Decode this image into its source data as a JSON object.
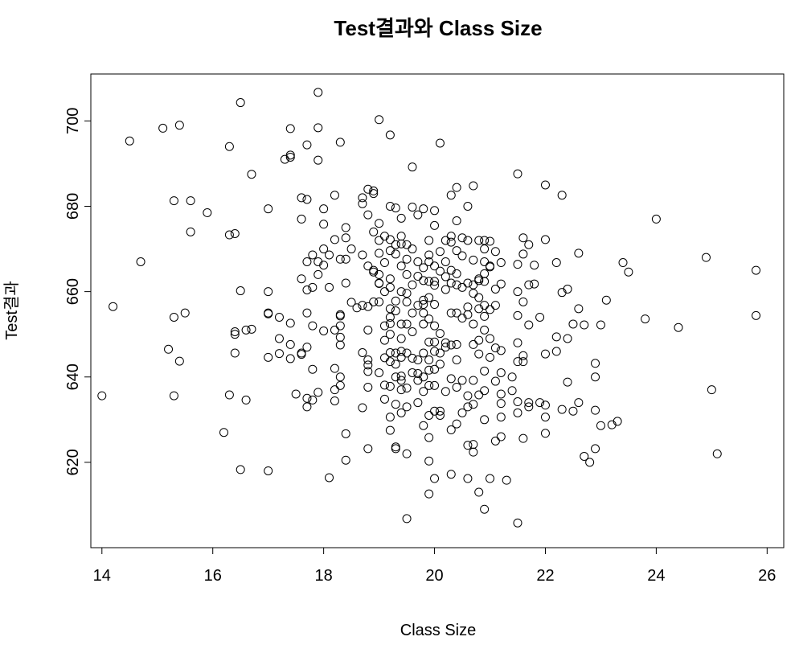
{
  "chart_data": {
    "type": "scatter",
    "title": "Test결과와 Class Size",
    "xlabel": "Class Size",
    "ylabel": "Test결과",
    "xlim": [
      13.8,
      26.3
    ],
    "ylim": [
      600,
      711
    ],
    "xticks": [
      14,
      16,
      18,
      20,
      22,
      24,
      26
    ],
    "yticks": [
      620,
      640,
      660,
      680,
      700
    ],
    "grid": false,
    "marker": "open-circle",
    "points": [
      [
        14.0,
        635.6
      ],
      [
        14.2,
        656.5
      ],
      [
        14.5,
        695.3
      ],
      [
        14.7,
        667.0
      ],
      [
        15.1,
        698.3
      ],
      [
        15.3,
        681.3
      ],
      [
        15.3,
        654.0
      ],
      [
        15.3,
        635.6
      ],
      [
        15.2,
        646.5
      ],
      [
        15.4,
        699.0
      ],
      [
        15.4,
        643.7
      ],
      [
        15.5,
        655.0
      ],
      [
        15.6,
        681.3
      ],
      [
        15.6,
        674.0
      ],
      [
        15.9,
        678.5
      ],
      [
        16.2,
        627.0
      ],
      [
        16.3,
        694.0
      ],
      [
        16.3,
        673.3
      ],
      [
        16.3,
        635.8
      ],
      [
        16.4,
        673.6
      ],
      [
        16.4,
        650.6
      ],
      [
        16.4,
        650.0
      ],
      [
        16.4,
        645.6
      ],
      [
        16.5,
        704.3
      ],
      [
        16.5,
        660.2
      ],
      [
        16.5,
        618.3
      ],
      [
        16.6,
        651.0
      ],
      [
        16.6,
        634.6
      ],
      [
        16.7,
        687.5
      ],
      [
        16.7,
        651.2
      ],
      [
        17.0,
        679.4
      ],
      [
        17.0,
        660.0
      ],
      [
        17.0,
        655.0
      ],
      [
        17.0,
        654.8
      ],
      [
        17.0,
        644.6
      ],
      [
        17.0,
        618.0
      ],
      [
        17.2,
        654.0
      ],
      [
        17.2,
        649.0
      ],
      [
        17.2,
        645.5
      ],
      [
        17.3,
        691.0
      ],
      [
        17.4,
        691.5
      ],
      [
        17.4,
        692.0
      ],
      [
        17.4,
        698.2
      ],
      [
        17.4,
        652.6
      ],
      [
        17.4,
        647.6
      ],
      [
        17.4,
        644.3
      ],
      [
        17.5,
        636.0
      ],
      [
        17.6,
        645.3
      ],
      [
        17.6,
        682.0
      ],
      [
        17.6,
        677.0
      ],
      [
        17.6,
        645.6
      ],
      [
        17.6,
        663.0
      ],
      [
        17.7,
        694.4
      ],
      [
        17.7,
        681.6
      ],
      [
        17.7,
        667.0
      ],
      [
        17.7,
        660.4
      ],
      [
        17.7,
        655.0
      ],
      [
        17.7,
        647.0
      ],
      [
        17.7,
        633.0
      ],
      [
        17.7,
        635.0
      ],
      [
        17.8,
        668.6
      ],
      [
        17.8,
        661.0
      ],
      [
        17.8,
        652.0
      ],
      [
        17.8,
        634.6
      ],
      [
        17.8,
        641.8
      ],
      [
        17.9,
        706.7
      ],
      [
        17.9,
        698.4
      ],
      [
        17.9,
        690.8
      ],
      [
        17.9,
        667.0
      ],
      [
        17.9,
        664.0
      ],
      [
        17.9,
        636.4
      ],
      [
        18.0,
        679.4
      ],
      [
        18.0,
        675.8
      ],
      [
        18.0,
        670.0
      ],
      [
        18.0,
        666.2
      ],
      [
        18.0,
        650.8
      ],
      [
        18.1,
        616.4
      ],
      [
        18.1,
        668.6
      ],
      [
        18.1,
        661.0
      ],
      [
        18.2,
        682.6
      ],
      [
        18.2,
        672.2
      ],
      [
        18.2,
        651.0
      ],
      [
        18.2,
        637.0
      ],
      [
        18.2,
        642.0
      ],
      [
        18.2,
        634.4
      ],
      [
        18.3,
        695.0
      ],
      [
        18.3,
        667.6
      ],
      [
        18.3,
        654.6
      ],
      [
        18.3,
        654.3
      ],
      [
        18.3,
        652.0
      ],
      [
        18.3,
        649.3
      ],
      [
        18.3,
        647.5
      ],
      [
        18.3,
        640.0
      ],
      [
        18.3,
        638.0
      ],
      [
        18.4,
        675.0
      ],
      [
        18.4,
        672.6
      ],
      [
        18.4,
        667.6
      ],
      [
        18.4,
        662.0
      ],
      [
        18.4,
        626.7
      ],
      [
        18.4,
        620.5
      ],
      [
        18.5,
        670.0
      ],
      [
        18.5,
        657.5
      ],
      [
        18.6,
        656.2
      ],
      [
        18.7,
        682.0
      ],
      [
        18.7,
        680.6
      ],
      [
        18.7,
        668.6
      ],
      [
        18.7,
        656.8
      ],
      [
        18.7,
        645.7
      ],
      [
        18.7,
        632.8
      ],
      [
        18.8,
        684.0
      ],
      [
        18.8,
        678.0
      ],
      [
        18.8,
        666.0
      ],
      [
        18.8,
        656.5
      ],
      [
        18.8,
        651.0
      ],
      [
        18.8,
        644.0
      ],
      [
        18.8,
        642.8
      ],
      [
        18.8,
        641.3
      ],
      [
        18.8,
        637.6
      ],
      [
        18.8,
        623.2
      ],
      [
        18.9,
        683.6
      ],
      [
        18.9,
        683.0
      ],
      [
        18.9,
        674.0
      ],
      [
        18.9,
        664.6
      ],
      [
        18.9,
        657.6
      ],
      [
        18.9,
        665.0
      ],
      [
        19.0,
        700.3
      ],
      [
        19.0,
        672.0
      ],
      [
        19.0,
        669.0
      ],
      [
        19.0,
        664.0
      ],
      [
        19.0,
        661.9
      ],
      [
        19.0,
        657.6
      ],
      [
        19.0,
        662.0
      ],
      [
        19.0,
        641.0
      ],
      [
        19.0,
        676.0
      ],
      [
        19.1,
        673.0
      ],
      [
        19.1,
        666.8
      ],
      [
        19.1,
        660.0
      ],
      [
        19.1,
        652.0
      ],
      [
        19.1,
        648.6
      ],
      [
        19.1,
        644.5
      ],
      [
        19.1,
        638.1
      ],
      [
        19.1,
        634.8
      ],
      [
        19.2,
        696.7
      ],
      [
        19.2,
        680.0
      ],
      [
        19.2,
        672.2
      ],
      [
        19.2,
        669.6
      ],
      [
        19.2,
        663.0
      ],
      [
        19.2,
        661.0
      ],
      [
        19.2,
        656.0
      ],
      [
        19.2,
        654.0
      ],
      [
        19.2,
        652.5
      ],
      [
        19.2,
        650.0
      ],
      [
        19.2,
        645.7
      ],
      [
        19.2,
        643.6
      ],
      [
        19.2,
        637.8
      ],
      [
        19.2,
        630.6
      ],
      [
        19.2,
        627.5
      ],
      [
        19.3,
        679.6
      ],
      [
        19.3,
        671.0
      ],
      [
        19.3,
        668.8
      ],
      [
        19.3,
        657.8
      ],
      [
        19.3,
        655.5
      ],
      [
        19.3,
        645.6
      ],
      [
        19.3,
        643.0
      ],
      [
        19.3,
        640.0
      ],
      [
        19.3,
        633.6
      ],
      [
        19.3,
        623.6
      ],
      [
        19.3,
        623.2
      ],
      [
        19.4,
        677.2
      ],
      [
        19.4,
        673.0
      ],
      [
        19.4,
        671.2
      ],
      [
        19.4,
        666.0
      ],
      [
        19.4,
        660.0
      ],
      [
        19.4,
        652.4
      ],
      [
        19.4,
        649.0
      ],
      [
        19.4,
        646.0
      ],
      [
        19.4,
        644.6
      ],
      [
        19.4,
        640.2
      ],
      [
        19.4,
        639.2
      ],
      [
        19.4,
        637.0
      ],
      [
        19.4,
        631.6
      ],
      [
        19.5,
        671.0
      ],
      [
        19.5,
        667.6
      ],
      [
        19.5,
        664.0
      ],
      [
        19.5,
        659.6
      ],
      [
        19.5,
        657.6
      ],
      [
        19.5,
        652.4
      ],
      [
        19.5,
        645.6
      ],
      [
        19.5,
        637.4
      ],
      [
        19.5,
        633.0
      ],
      [
        19.5,
        622.0
      ],
      [
        19.5,
        606.8
      ],
      [
        19.6,
        689.2
      ],
      [
        19.6,
        679.8
      ],
      [
        19.6,
        670.0
      ],
      [
        19.6,
        661.6
      ],
      [
        19.6,
        655.0
      ],
      [
        19.6,
        650.6
      ],
      [
        19.6,
        644.4
      ],
      [
        19.6,
        641.0
      ],
      [
        19.7,
        678.0
      ],
      [
        19.7,
        667.0
      ],
      [
        19.7,
        663.6
      ],
      [
        19.7,
        656.8
      ],
      [
        19.7,
        644.0
      ],
      [
        19.7,
        640.8
      ],
      [
        19.7,
        639.2
      ],
      [
        19.7,
        634.0
      ],
      [
        19.8,
        679.4
      ],
      [
        19.8,
        665.6
      ],
      [
        19.8,
        662.6
      ],
      [
        19.8,
        658.0
      ],
      [
        19.8,
        657.0
      ],
      [
        19.8,
        655.0
      ],
      [
        19.8,
        652.4
      ],
      [
        19.8,
        645.6
      ],
      [
        19.8,
        640.0
      ],
      [
        19.8,
        636.6
      ],
      [
        19.8,
        628.6
      ],
      [
        19.9,
        672.0
      ],
      [
        19.9,
        668.6
      ],
      [
        19.9,
        667.0
      ],
      [
        19.9,
        662.4
      ],
      [
        19.9,
        658.6
      ],
      [
        19.9,
        653.6
      ],
      [
        19.9,
        648.2
      ],
      [
        19.9,
        644.0
      ],
      [
        19.9,
        641.6
      ],
      [
        19.9,
        638.0
      ],
      [
        19.9,
        631.0
      ],
      [
        19.9,
        625.8
      ],
      [
        19.9,
        620.3
      ],
      [
        19.9,
        612.6
      ],
      [
        20.0,
        679.0
      ],
      [
        20.0,
        675.5
      ],
      [
        20.0,
        666.0
      ],
      [
        20.0,
        662.4
      ],
      [
        20.0,
        661.5
      ],
      [
        20.0,
        657.0
      ],
      [
        20.0,
        652.0
      ],
      [
        20.0,
        648.2
      ],
      [
        20.0,
        646.0
      ],
      [
        20.0,
        641.8
      ],
      [
        20.0,
        638.0
      ],
      [
        20.0,
        632.0
      ],
      [
        20.0,
        616.2
      ],
      [
        20.1,
        694.8
      ],
      [
        20.1,
        669.4
      ],
      [
        20.1,
        664.8
      ],
      [
        20.1,
        650.2
      ],
      [
        20.1,
        645.6
      ],
      [
        20.1,
        643.0
      ],
      [
        20.1,
        632.0
      ],
      [
        20.1,
        631.0
      ],
      [
        20.2,
        672.0
      ],
      [
        20.2,
        667.0
      ],
      [
        20.2,
        663.5
      ],
      [
        20.2,
        660.5
      ],
      [
        20.2,
        648.0
      ],
      [
        20.2,
        647.0
      ],
      [
        20.2,
        636.6
      ],
      [
        20.3,
        682.6
      ],
      [
        20.3,
        673.0
      ],
      [
        20.3,
        671.6
      ],
      [
        20.3,
        665.0
      ],
      [
        20.3,
        662.0
      ],
      [
        20.3,
        655.0
      ],
      [
        20.3,
        647.5
      ],
      [
        20.3,
        639.6
      ],
      [
        20.3,
        627.6
      ],
      [
        20.3,
        617.2
      ],
      [
        20.4,
        684.4
      ],
      [
        20.4,
        676.6
      ],
      [
        20.4,
        669.6
      ],
      [
        20.4,
        664.2
      ],
      [
        20.4,
        661.6
      ],
      [
        20.4,
        655.0
      ],
      [
        20.4,
        647.6
      ],
      [
        20.4,
        644.0
      ],
      [
        20.4,
        637.6
      ],
      [
        20.4,
        629.0
      ],
      [
        20.5,
        672.6
      ],
      [
        20.5,
        668.4
      ],
      [
        20.5,
        661.0
      ],
      [
        20.5,
        653.8
      ],
      [
        20.5,
        639.2
      ],
      [
        20.5,
        631.6
      ],
      [
        20.6,
        680.0
      ],
      [
        20.6,
        672.0
      ],
      [
        20.6,
        662.0
      ],
      [
        20.6,
        656.4
      ],
      [
        20.6,
        654.6
      ],
      [
        20.6,
        635.6
      ],
      [
        20.6,
        633.0
      ],
      [
        20.6,
        624.0
      ],
      [
        20.6,
        616.2
      ],
      [
        20.7,
        684.8
      ],
      [
        20.7,
        667.4
      ],
      [
        20.7,
        661.6
      ],
      [
        20.7,
        659.6
      ],
      [
        20.7,
        652.4
      ],
      [
        20.7,
        647.6
      ],
      [
        20.7,
        639.2
      ],
      [
        20.7,
        633.6
      ],
      [
        20.7,
        624.2
      ],
      [
        20.7,
        622.4
      ],
      [
        20.8,
        672.0
      ],
      [
        20.8,
        663.0
      ],
      [
        20.8,
        662.6
      ],
      [
        20.8,
        658.6
      ],
      [
        20.8,
        656.0
      ],
      [
        20.8,
        648.6
      ],
      [
        20.8,
        645.4
      ],
      [
        20.8,
        635.8
      ],
      [
        20.8,
        613.0
      ],
      [
        20.9,
        672.0
      ],
      [
        20.9,
        670.0
      ],
      [
        20.9,
        667.0
      ],
      [
        20.9,
        664.2
      ],
      [
        20.9,
        662.4
      ],
      [
        20.9,
        656.8
      ],
      [
        20.9,
        654.2
      ],
      [
        20.9,
        651.0
      ],
      [
        20.9,
        641.4
      ],
      [
        20.9,
        636.8
      ],
      [
        20.9,
        630.0
      ],
      [
        20.9,
        609.0
      ],
      [
        21.0,
        671.8
      ],
      [
        21.0,
        666.0
      ],
      [
        21.0,
        665.8
      ],
      [
        21.0,
        655.8
      ],
      [
        21.0,
        649.0
      ],
      [
        21.0,
        644.6
      ],
      [
        21.0,
        616.2
      ],
      [
        21.1,
        669.4
      ],
      [
        21.1,
        660.6
      ],
      [
        21.1,
        656.8
      ],
      [
        21.1,
        646.8
      ],
      [
        21.1,
        639.0
      ],
      [
        21.1,
        625.0
      ],
      [
        21.2,
        666.8
      ],
      [
        21.2,
        661.8
      ],
      [
        21.2,
        646.2
      ],
      [
        21.2,
        641.0
      ],
      [
        21.2,
        636.0
      ],
      [
        21.2,
        633.8
      ],
      [
        21.2,
        630.6
      ],
      [
        21.2,
        626.0
      ],
      [
        21.3,
        615.8
      ],
      [
        21.4,
        640.0
      ],
      [
        21.4,
        636.8
      ],
      [
        21.5,
        687.6
      ],
      [
        21.5,
        666.4
      ],
      [
        21.5,
        660.0
      ],
      [
        21.5,
        654.4
      ],
      [
        21.5,
        648.0
      ],
      [
        21.5,
        643.6
      ],
      [
        21.5,
        634.2
      ],
      [
        21.5,
        631.6
      ],
      [
        21.5,
        605.8
      ],
      [
        21.6,
        672.6
      ],
      [
        21.6,
        668.8
      ],
      [
        21.6,
        657.6
      ],
      [
        21.6,
        645.0
      ],
      [
        21.6,
        643.6
      ],
      [
        21.6,
        625.6
      ],
      [
        21.7,
        671.0
      ],
      [
        21.7,
        661.6
      ],
      [
        21.7,
        652.2
      ],
      [
        21.7,
        634.0
      ],
      [
        21.7,
        633.0
      ],
      [
        21.8,
        666.2
      ],
      [
        21.8,
        661.8
      ],
      [
        21.9,
        654.0
      ],
      [
        21.9,
        634.0
      ],
      [
        22.0,
        685.0
      ],
      [
        22.0,
        672.2
      ],
      [
        22.0,
        645.4
      ],
      [
        22.0,
        633.4
      ],
      [
        22.0,
        630.6
      ],
      [
        22.0,
        626.8
      ],
      [
        22.2,
        666.8
      ],
      [
        22.2,
        649.4
      ],
      [
        22.2,
        646.0
      ],
      [
        22.3,
        682.6
      ],
      [
        22.3,
        659.8
      ],
      [
        22.3,
        632.4
      ],
      [
        22.4,
        660.6
      ],
      [
        22.4,
        649.0
      ],
      [
        22.4,
        638.8
      ],
      [
        22.5,
        652.4
      ],
      [
        22.5,
        632.0
      ],
      [
        22.6,
        669.0
      ],
      [
        22.6,
        656.0
      ],
      [
        22.6,
        634.0
      ],
      [
        22.7,
        652.2
      ],
      [
        22.7,
        621.4
      ],
      [
        22.8,
        620.0
      ],
      [
        22.9,
        643.2
      ],
      [
        22.9,
        623.2
      ],
      [
        22.9,
        640.0
      ],
      [
        22.9,
        632.2
      ],
      [
        23.0,
        628.6
      ],
      [
        23.0,
        652.2
      ],
      [
        23.1,
        658.0
      ],
      [
        23.2,
        628.8
      ],
      [
        23.3,
        629.6
      ],
      [
        23.4,
        666.8
      ],
      [
        23.5,
        664.6
      ],
      [
        23.8,
        653.6
      ],
      [
        24.0,
        677.0
      ],
      [
        24.4,
        651.6
      ],
      [
        24.9,
        668.0
      ],
      [
        25.0,
        637.0
      ],
      [
        25.1,
        622.0
      ],
      [
        25.8,
        665.0
      ],
      [
        25.8,
        654.4
      ]
    ]
  },
  "colors": {
    "background": "#ffffff",
    "marker_stroke": "#000000",
    "axis": "#000000"
  }
}
